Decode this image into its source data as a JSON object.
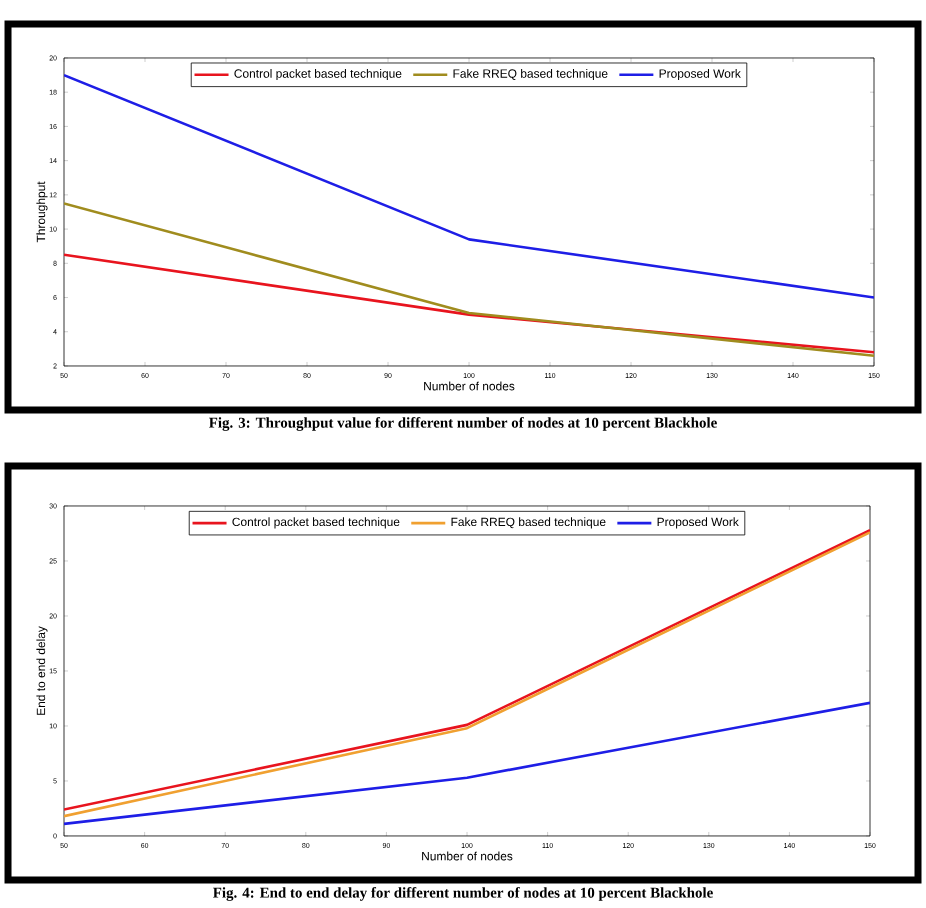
{
  "chart_data": [
    {
      "type": "line",
      "xlabel": "Number of nodes",
      "ylabel": "Throughput",
      "x": [
        50,
        100,
        150
      ],
      "xlim": [
        50,
        150
      ],
      "ylim": [
        2,
        20
      ],
      "xticks": [
        50,
        60,
        70,
        80,
        90,
        100,
        110,
        120,
        130,
        140,
        150
      ],
      "yticks": [
        2,
        4,
        6,
        8,
        10,
        12,
        14,
        16,
        18,
        20
      ],
      "legend": "top",
      "line_style": "solid",
      "series": [
        {
          "name": "Control packet based technique",
          "color": "#e8141e",
          "values": [
            8.5,
            5.0,
            2.8
          ]
        },
        {
          "name": "Fake RREQ based technique",
          "color": "#a08c1e",
          "values": [
            11.5,
            5.1,
            2.6
          ]
        },
        {
          "name": "Proposed Work",
          "color": "#1e1ee6",
          "values": [
            19.0,
            9.4,
            6.0
          ]
        }
      ],
      "annotations": [
        "Fig. 3: Throughput value for different number of nodes at 10 percent Blackhole"
      ]
    },
    {
      "type": "line",
      "xlabel": "Number of nodes",
      "ylabel": "End to end delay",
      "x": [
        50,
        100,
        150
      ],
      "xlim": [
        50,
        150
      ],
      "ylim": [
        0,
        30
      ],
      "xticks": [
        50,
        60,
        70,
        80,
        90,
        100,
        110,
        120,
        130,
        140,
        150
      ],
      "yticks": [
        0,
        5,
        10,
        15,
        20,
        25,
        30
      ],
      "legend": "top",
      "line_style": "solid",
      "series": [
        {
          "name": "Control packet based technique",
          "color": "#e8141e",
          "values": [
            2.4,
            10.1,
            27.8
          ]
        },
        {
          "name": "Fake RREQ based technique",
          "color": "#f0a030",
          "values": [
            1.8,
            9.8,
            27.6
          ]
        },
        {
          "name": "Proposed Work",
          "color": "#1e1ee6",
          "values": [
            1.1,
            5.3,
            12.1
          ]
        }
      ],
      "annotations": [
        "Fig. 4: End to end delay for different number of nodes at 10 percent Blackhole"
      ]
    }
  ]
}
